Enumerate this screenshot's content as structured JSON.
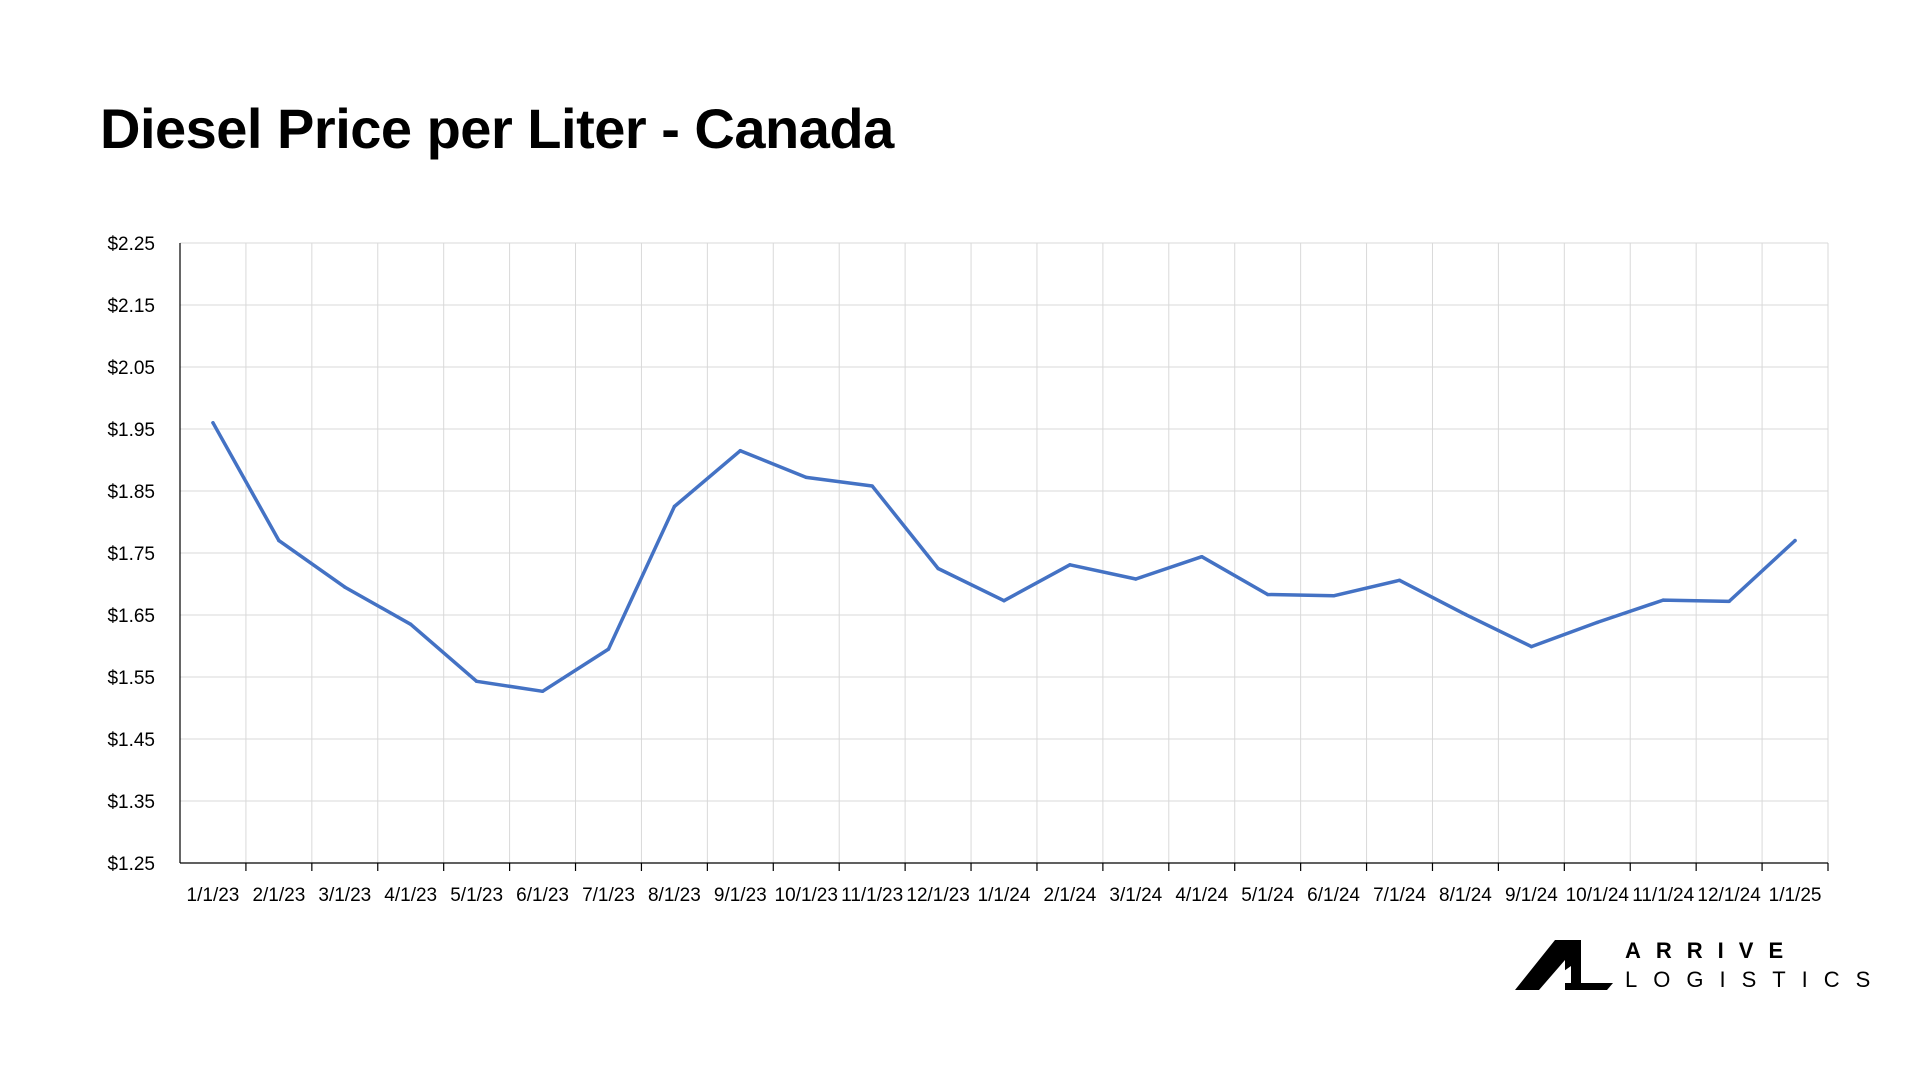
{
  "title": "Diesel Price per Liter - Canada",
  "brand": {
    "line1": "ARRIVE",
    "line2": "LOGISTICS"
  },
  "colors": {
    "series_line": "#4472C4",
    "grid": "#d9d9d9",
    "axis": "#000000"
  },
  "chart_data": {
    "type": "line",
    "title": "Diesel Price per Liter - Canada",
    "xlabel": "",
    "ylabel": "",
    "categories": [
      "1/1/23",
      "2/1/23",
      "3/1/23",
      "4/1/23",
      "5/1/23",
      "6/1/23",
      "7/1/23",
      "8/1/23",
      "9/1/23",
      "10/1/23",
      "11/1/23",
      "12/1/23",
      "1/1/24",
      "2/1/24",
      "3/1/24",
      "4/1/24",
      "5/1/24",
      "6/1/24",
      "7/1/24",
      "8/1/24",
      "9/1/24",
      "10/1/24",
      "11/1/24",
      "12/1/24",
      "1/1/25"
    ],
    "values": [
      1.96,
      1.77,
      1.695,
      1.635,
      1.543,
      1.527,
      1.595,
      1.825,
      1.915,
      1.872,
      1.858,
      1.725,
      1.673,
      1.731,
      1.708,
      1.744,
      1.683,
      1.681,
      1.706,
      1.651,
      1.599,
      1.638,
      1.674,
      1.672,
      1.77
    ],
    "ylim": [
      1.25,
      2.25
    ],
    "yticks": [
      1.25,
      1.35,
      1.45,
      1.55,
      1.65,
      1.75,
      1.85,
      1.95,
      2.05,
      2.15,
      2.25
    ],
    "ytick_labels": [
      "$1.25",
      "$1.35",
      "$1.45",
      "$1.55",
      "$1.65",
      "$1.75",
      "$1.85",
      "$1.95",
      "$2.05",
      "$2.15",
      "$2.25"
    ],
    "grid": true,
    "legend": "none"
  }
}
